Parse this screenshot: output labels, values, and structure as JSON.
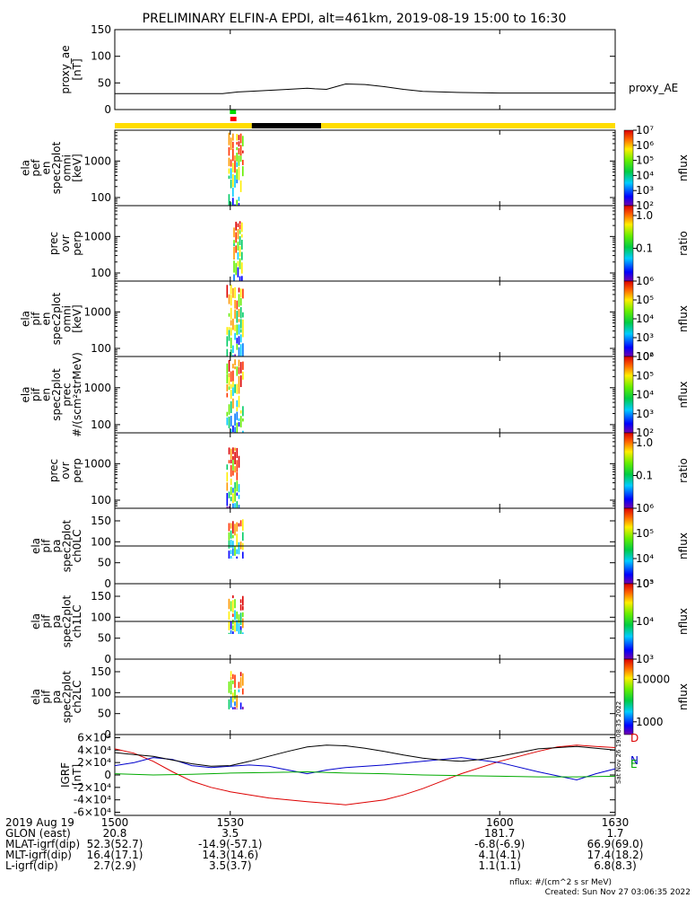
{
  "title": "PRELIMINARY ELFIN-A EPDI, alt=461km, 2019-08-19 15:00 to 16:30",
  "time_axis": {
    "tmin": 1500,
    "tmax": 1630,
    "tick_labels": [
      "1500",
      "1530",
      "1600",
      "1630"
    ],
    "date_label": "2019 Aug 19"
  },
  "ephemeris": [
    {
      "label": "GLON (east)",
      "values": [
        "20.8",
        "3.5",
        "181.7",
        "1.7"
      ]
    },
    {
      "label": "MLAT-igrf(dip)",
      "values": [
        "52.3(52.7)",
        "-14.9(-57.1)",
        "-6.8(-6.9)",
        "66.9(69.0)"
      ]
    },
    {
      "label": "MLT-igrf(dip)",
      "values": [
        "16.4(17.1)",
        "14.3(14.6)",
        "4.1(4.1)",
        "17.4(18.2)"
      ]
    },
    {
      "label": "L-igrf(dip)",
      "values": [
        "2.7(2.9)",
        "3.5(3.7)",
        "1.1(1.1)",
        "6.8(8.3)"
      ]
    }
  ],
  "footer": {
    "units": "nflux: #/(cm^2 s sr MeV)",
    "created": "Created: Sun Nov 27 03:06:35 2022",
    "stamp": "Sat Nov 26 19:08:35 2022"
  },
  "bars": {
    "spin_segments": [
      {
        "t0": 1500.0,
        "t1": 1535.6,
        "color": "#ffdd00"
      },
      {
        "t0": 1535.6,
        "t1": 1553.6,
        "color": "#000000"
      },
      {
        "t0": 1553.6,
        "t1": 1630.0,
        "color": "#ffdd00"
      }
    ],
    "science_segments": [
      {
        "t0": 1529.9,
        "t1": 1531.5,
        "color": "#00dd00"
      },
      {
        "t0": 1530.0,
        "t1": 1531.6,
        "color": "#ff0000"
      }
    ]
  },
  "chart_data": [
    {
      "type": "line",
      "ylabel": "proxy_ae\n[nT]",
      "ylim": [
        0,
        150
      ],
      "yticks": [
        "0",
        "50",
        "100",
        "150"
      ],
      "series": [
        {
          "name": "proxy_AE",
          "color": "#000000",
          "x": [
            1500,
            1505,
            1510,
            1515,
            1520,
            1525,
            1528,
            1532,
            1535,
            1540,
            1545,
            1550,
            1552,
            1555,
            1558,
            1560,
            1565,
            1570,
            1575,
            1580,
            1590,
            1600,
            1610,
            1620,
            1630
          ],
          "y": [
            30,
            30,
            30,
            30,
            30,
            30,
            30,
            33,
            34,
            36,
            38,
            40,
            39,
            38,
            44,
            48,
            47,
            43,
            38,
            34,
            32,
            31,
            31,
            31,
            31
          ]
        }
      ]
    },
    {
      "type": "heatmap",
      "ylabel": "ela\npef\nen\nspec2plot\nomni\n[keV]",
      "ylog": true,
      "ylim": [
        60,
        7000
      ],
      "yticks": [
        "100",
        "1000"
      ],
      "zlog": true,
      "zlim": [
        100,
        10000000
      ],
      "ztitle": "nflux",
      "zticks": [
        "10²",
        "10³",
        "10⁴",
        "10⁵",
        "10⁶",
        "10⁷"
      ],
      "region": [
        1529.5,
        1533.5
      ],
      "band_range": [
        60,
        6000
      ]
    },
    {
      "type": "heatmap",
      "ylabel": "prec\novr\nperp",
      "ylog": true,
      "ylim": [
        60,
        7000
      ],
      "yticks": [
        "100",
        "1000"
      ],
      "zlog": true,
      "zlim": [
        0.01,
        2
      ],
      "ztitle": "ratio",
      "zticks": [
        "0.1",
        "1.0"
      ],
      "region": [
        1530.8,
        1533.5
      ],
      "band_range": [
        60,
        3000
      ]
    },
    {
      "type": "heatmap",
      "ylabel": "ela\npif\nen\nspec2plot\nomni\n[keV]",
      "ylog": true,
      "ylim": [
        60,
        7000
      ],
      "yticks": [
        "100",
        "1000"
      ],
      "zlog": true,
      "zlim": [
        100,
        1000000
      ],
      "ztitle": "nflux",
      "zticks": [
        "10²",
        "10³",
        "10⁴",
        "10⁵",
        "10⁶"
      ],
      "region": [
        1529.0,
        1533.5
      ],
      "band_range": [
        60,
        6000
      ]
    },
    {
      "type": "heatmap",
      "ylabel": "ela\npif\nen\nspec2plot\nprec\n#/(scm²strMeV)",
      "ylog": true,
      "ylim": [
        60,
        7000
      ],
      "yticks": [
        "100",
        "1000"
      ],
      "zlog": true,
      "zlim": [
        100,
        1000000
      ],
      "ztitle": "nflux",
      "zticks": [
        "10²",
        "10³",
        "10⁴",
        "10⁵",
        "10⁶"
      ],
      "region": [
        1529.0,
        1533.5
      ],
      "band_range": [
        60,
        6000
      ]
    },
    {
      "type": "heatmap",
      "ylabel": "prec\novr\nperp",
      "ylog": true,
      "ylim": [
        60,
        7000
      ],
      "yticks": [
        "100",
        "1000"
      ],
      "zlog": true,
      "zlim": [
        0.01,
        2
      ],
      "ztitle": "ratio",
      "zticks": [
        "0.1",
        "1.0"
      ],
      "region": [
        1529.0,
        1532.8
      ],
      "band_range": [
        60,
        3000
      ]
    },
    {
      "type": "heatmap",
      "ylabel": "ela\npif\npa\nspec2plot\nch0LC",
      "ylim": [
        0,
        180
      ],
      "yticks": [
        "0",
        "50",
        "100",
        "150"
      ],
      "hline": 90,
      "zlog": true,
      "zlim": [
        1000,
        1000000
      ],
      "ztitle": "nflux",
      "zticks": [
        "10³",
        "10⁴",
        "10⁵",
        "10⁶"
      ],
      "region": [
        1529.5,
        1533.5
      ],
      "band_range": [
        60,
        155
      ]
    },
    {
      "type": "heatmap",
      "ylabel": "ela\npif\npa\nspec2plot\nch1LC",
      "ylim": [
        0,
        180
      ],
      "yticks": [
        "0",
        "50",
        "100",
        "150"
      ],
      "hline": 90,
      "zlog": true,
      "zlim": [
        1000,
        100000
      ],
      "ztitle": "nflux",
      "zticks": [
        "10³",
        "10⁴",
        "10⁵"
      ],
      "region": [
        1529.5,
        1533.5
      ],
      "band_range": [
        60,
        155
      ]
    },
    {
      "type": "heatmap",
      "ylabel": "ela\npif\npa\nspec2plot\nch2LC",
      "ylim": [
        0,
        180
      ],
      "yticks": [
        "0",
        "50",
        "100",
        "150"
      ],
      "hline": 90,
      "zlog": true,
      "zlim": [
        500,
        30000
      ],
      "ztitle": "nflux",
      "zticks": [
        "1000",
        "10000"
      ],
      "region": [
        1529.5,
        1533.5
      ],
      "band_range": [
        60,
        155
      ]
    },
    {
      "type": "line",
      "ylabel": "IGRF\n[nT]",
      "ylim": [
        -65000,
        65000
      ],
      "yticks": [
        "-6×10⁴",
        "-4×10⁴",
        "-2×10⁴",
        "0",
        "2×10⁴",
        "4×10⁴",
        "6×10⁴"
      ],
      "series": [
        {
          "name": "D",
          "color": "#dd0000",
          "x": [
            1500,
            1505,
            1510,
            1515,
            1520,
            1525,
            1530,
            1540,
            1550,
            1560,
            1570,
            1575,
            1580,
            1590,
            1600,
            1610,
            1615,
            1620,
            1625,
            1630
          ],
          "y": [
            42000,
            35000,
            22000,
            5000,
            -10000,
            -20000,
            -27000,
            -37000,
            -43000,
            -48000,
            -40000,
            -32000,
            -22000,
            2000,
            22000,
            38000,
            45000,
            48000,
            46000,
            44000
          ]
        },
        {
          "name": "N",
          "color": "#0000cc",
          "x": [
            1500,
            1505,
            1510,
            1515,
            1520,
            1525,
            1530,
            1535,
            1540,
            1545,
            1550,
            1555,
            1560,
            1570,
            1580,
            1590,
            1600,
            1610,
            1620,
            1625,
            1630
          ],
          "y": [
            15000,
            20000,
            28000,
            25000,
            15000,
            12000,
            14000,
            16000,
            14000,
            8000,
            2000,
            8000,
            12000,
            16000,
            22000,
            28000,
            20000,
            5000,
            -8000,
            2000,
            10000
          ]
        },
        {
          "name": "E",
          "color": "#00aa00",
          "x": [
            1500,
            1510,
            1520,
            1530,
            1540,
            1550,
            1560,
            1570,
            1580,
            1590,
            1600,
            1610,
            1620,
            1630
          ],
          "y": [
            2000,
            0,
            1000,
            3000,
            4000,
            5000,
            3000,
            2000,
            0,
            -1000,
            -2000,
            -3000,
            -3000,
            -2000
          ]
        },
        {
          "name": "",
          "color": "#000000",
          "x": [
            1500,
            1505,
            1510,
            1515,
            1520,
            1525,
            1530,
            1535,
            1540,
            1545,
            1550,
            1555,
            1560,
            1565,
            1570,
            1575,
            1580,
            1585,
            1590,
            1595,
            1600,
            1605,
            1610,
            1620,
            1630
          ],
          "y": [
            36000,
            33000,
            30000,
            24000,
            18000,
            14000,
            15000,
            22000,
            30000,
            38000,
            45000,
            48000,
            47000,
            43000,
            38000,
            32000,
            27000,
            24000,
            22000,
            25000,
            30000,
            36000,
            42000,
            46000,
            40000
          ]
        }
      ]
    }
  ]
}
